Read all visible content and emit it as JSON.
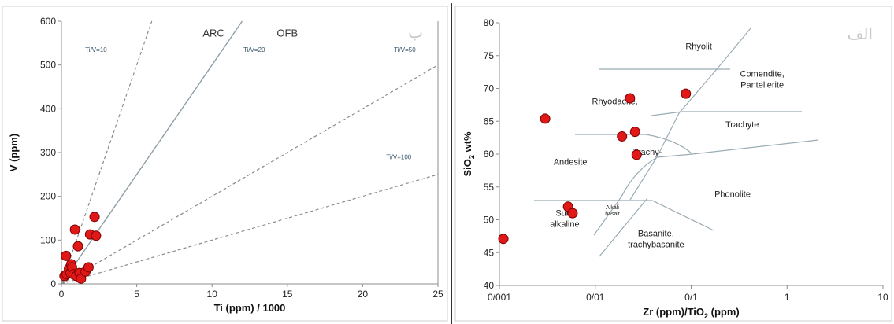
{
  "chart_data": [
    {
      "type": "scatter",
      "panel_label": "ب",
      "xlabel": "Ti (ppm) / 1000",
      "ylabel": "V (ppm)",
      "xlim": [
        0,
        25
      ],
      "ylim": [
        0,
        600
      ],
      "xticks": [
        0,
        5,
        10,
        15,
        20,
        25
      ],
      "yticks": [
        0,
        100,
        200,
        300,
        400,
        500,
        600
      ],
      "grid": false,
      "field_labels": [
        {
          "text": "ARC",
          "x": 10.1,
          "y": 565
        },
        {
          "text": "OFB",
          "x": 15,
          "y": 565
        }
      ],
      "ratio_lines": [
        {
          "ratio": 10,
          "label": "Ti/V=10",
          "style": "dashed",
          "label_x": 2.3,
          "label_y": 530
        },
        {
          "ratio": 20,
          "label": "Ti/V=20",
          "style": "solid",
          "label_x": 12.8,
          "label_y": 530
        },
        {
          "ratio": 50,
          "label": "Ti/V=50",
          "style": "dashed",
          "label_x": 22.8,
          "label_y": 530
        },
        {
          "ratio": 100,
          "label": "Ti/V=100",
          "style": "dashed",
          "label_x": 22.4,
          "label_y": 285
        }
      ],
      "series": [
        {
          "x": [
            0.2,
            0.3,
            0.35,
            0.5,
            0.6,
            0.65,
            0.7,
            0.8,
            0.9,
            1.0,
            1.1,
            1.2,
            1.3,
            1.6,
            1.8,
            1.9,
            2.2,
            2.3
          ],
          "y": [
            18,
            64,
            22,
            35,
            25,
            45,
            38,
            22,
            124,
            18,
            86,
            25,
            12,
            28,
            38,
            113,
            153,
            110
          ]
        }
      ]
    },
    {
      "type": "scatter",
      "panel_label": "الف",
      "xlabel": "Zr (ppm)/TiO",
      "xlabel_sub": "2",
      "xlabel_end": " (ppm)",
      "ylabel": "SiO",
      "ylabel_sub": "2",
      "ylabel_end": " wt%",
      "xscale": "log",
      "xlim": [
        0.001,
        10
      ],
      "ylim": [
        40,
        80
      ],
      "xticks": [
        0.001,
        0.01,
        0.1,
        1,
        10
      ],
      "xtick_labels": [
        "0/001",
        "0/01",
        "0/1",
        "1",
        "10"
      ],
      "yticks": [
        40,
        45,
        50,
        55,
        60,
        65,
        70,
        75,
        80
      ],
      "grid": false,
      "fields": [
        {
          "lines": [
            "Rhyolit"
          ],
          "x": 0.12,
          "y": 76
        },
        {
          "lines": [
            "Comendite,",
            "Pantellerite"
          ],
          "x": 0.55,
          "y": 71.8
        },
        {
          "lines": [
            "Rhyodacite,"
          ],
          "x": 0.016,
          "y": 67.6
        },
        {
          "lines": [
            "Trachyte"
          ],
          "x": 0.34,
          "y": 64.1
        },
        {
          "lines": [
            "Andesite"
          ],
          "x": 0.0055,
          "y": 58.4
        },
        {
          "lines": [
            "Trachy-"
          ],
          "x": 0.035,
          "y": 59.9
        },
        {
          "lines": [
            "Phonolite"
          ],
          "x": 0.27,
          "y": 53.5
        },
        {
          "lines": [
            "Alkali",
            "basalt"
          ],
          "x": 0.0151,
          "y": 51.6
        },
        {
          "lines": [
            "Sub-",
            "alkaline"
          ],
          "x": 0.0048,
          "y": 50.6
        },
        {
          "lines": [
            "Basanite,",
            "trachybasanite"
          ],
          "x": 0.043,
          "y": 47.5
        }
      ],
      "series": [
        {
          "x": [
            0.0011,
            0.003,
            0.0052,
            0.0058,
            0.019,
            0.023,
            0.026,
            0.027,
            0.088
          ],
          "y": [
            47.1,
            65.4,
            52.0,
            51.0,
            62.7,
            68.5,
            63.4,
            59.9,
            69.2
          ]
        }
      ]
    }
  ]
}
